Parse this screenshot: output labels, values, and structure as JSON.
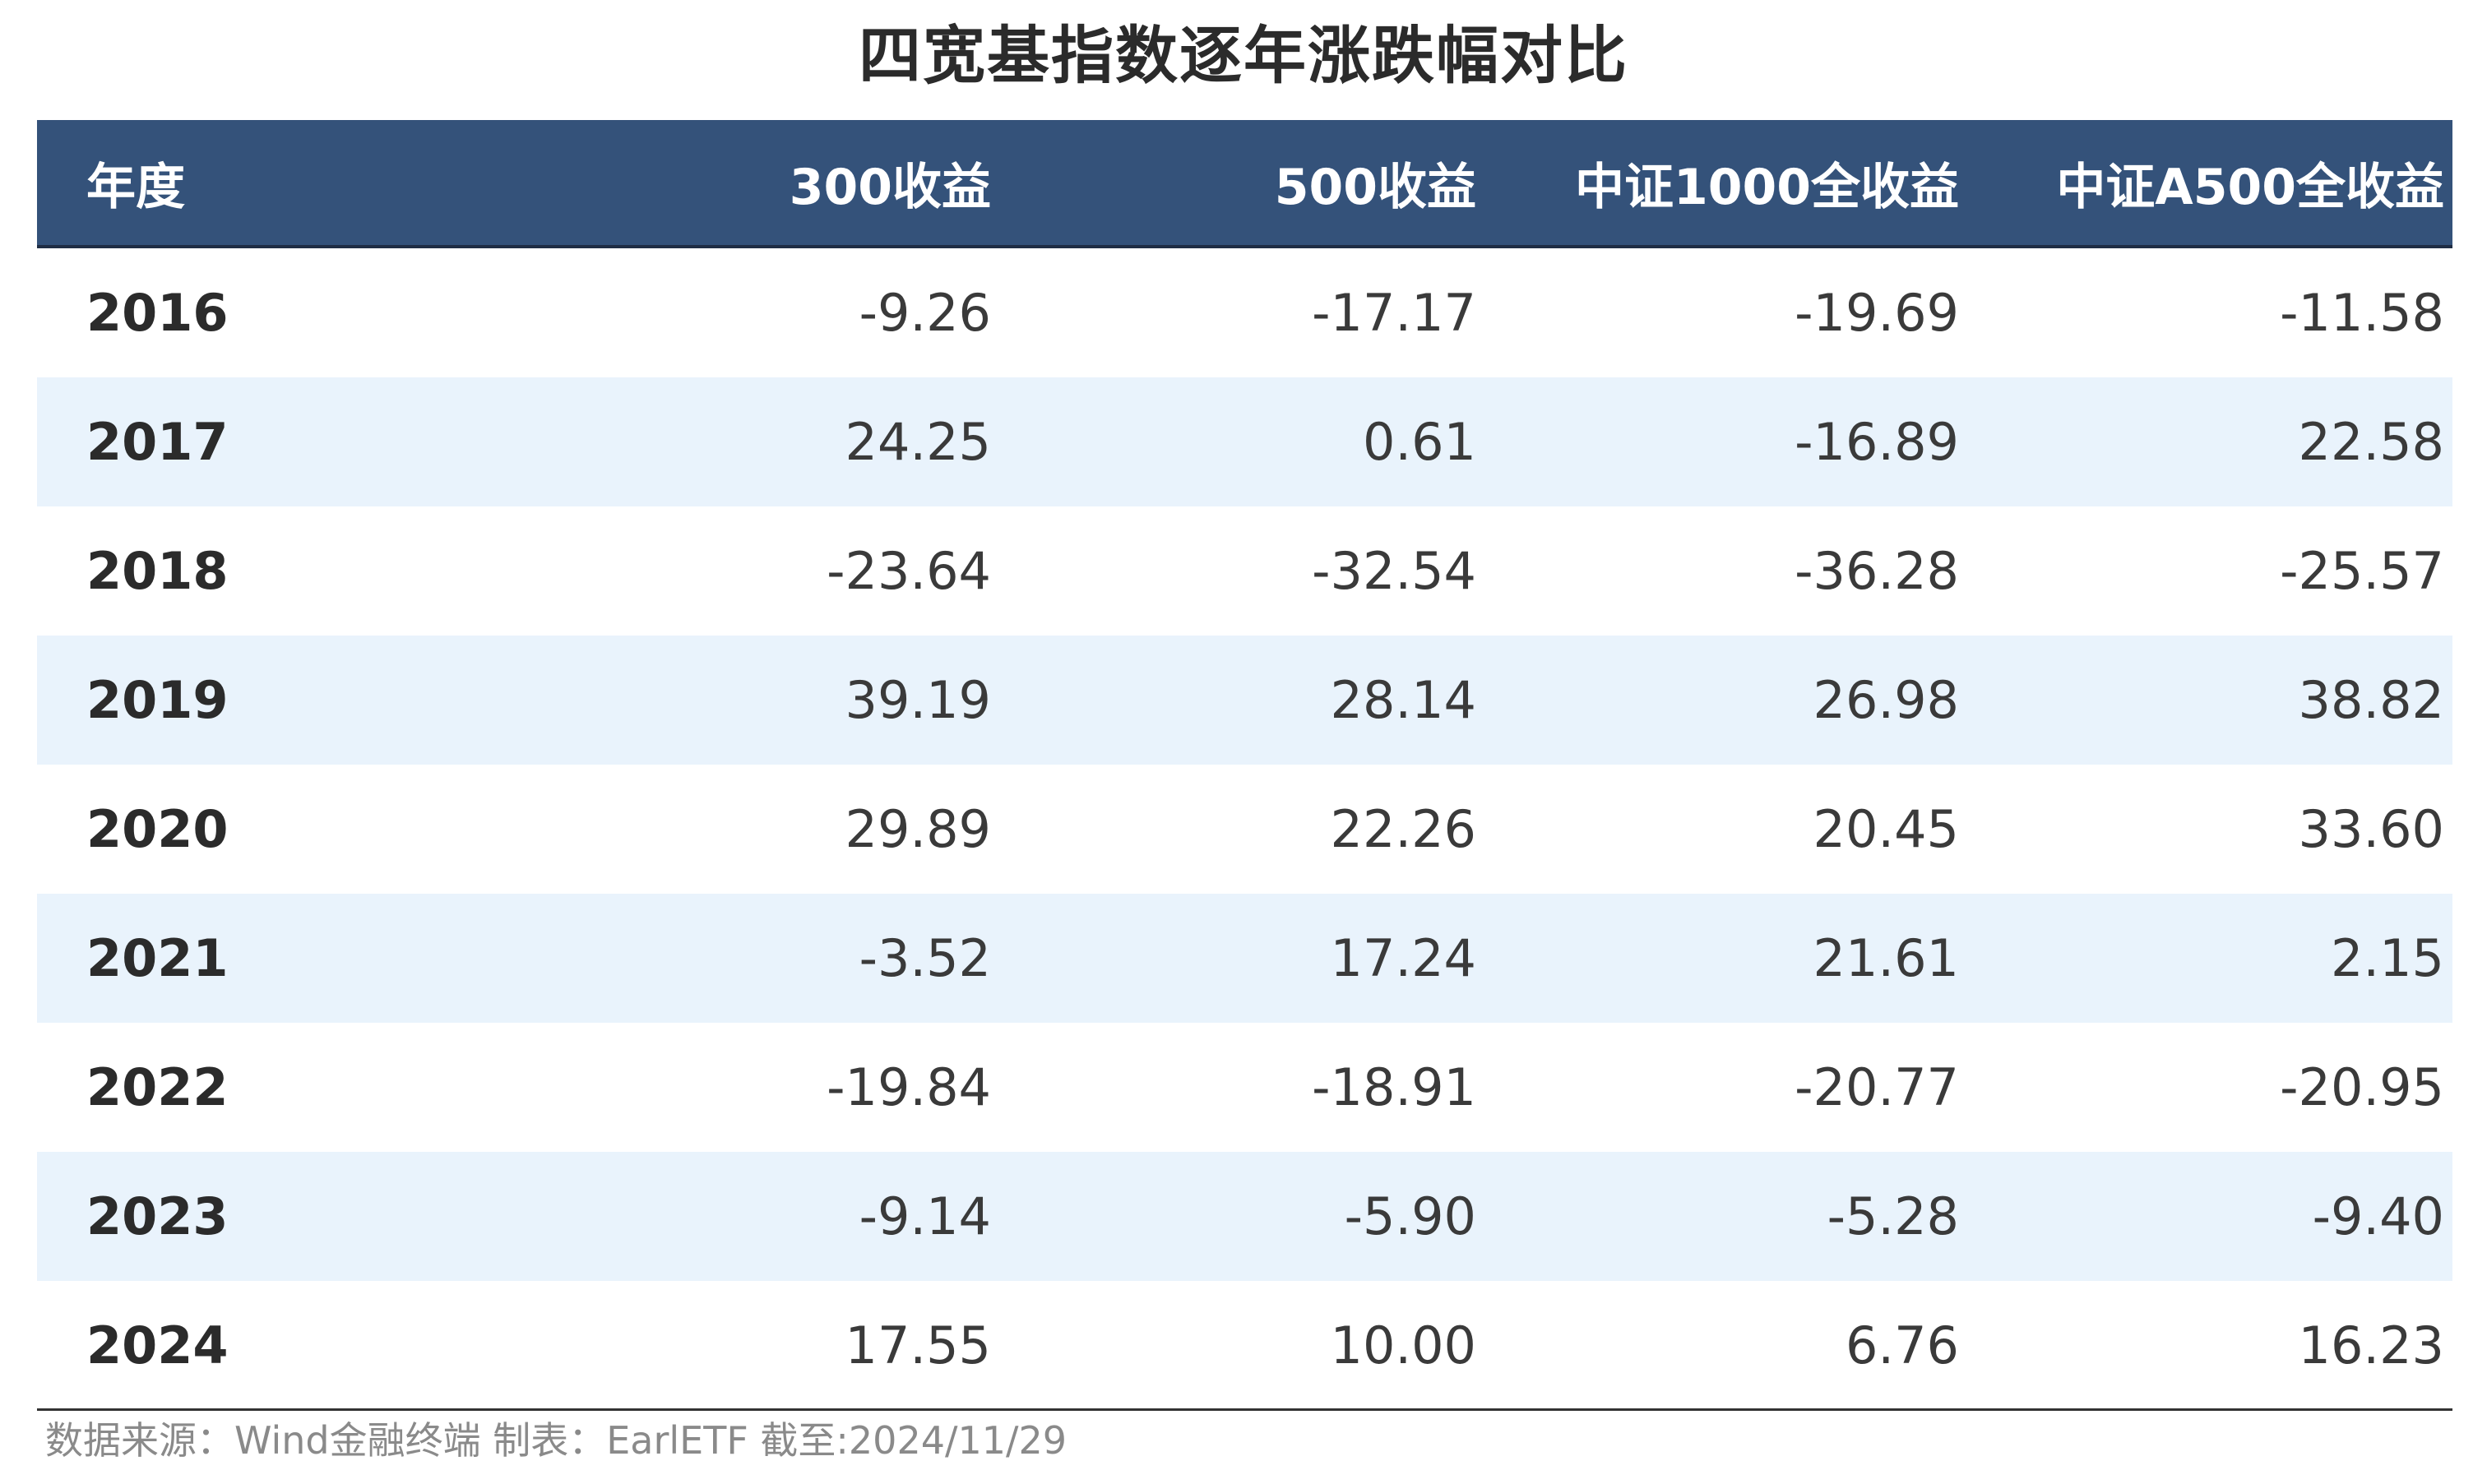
{
  "colors": {
    "header_bg": "#34527a",
    "row_alt_bg": "#e9f3fc",
    "row_bg": "#ffffff",
    "header_text": "#ffffff"
  },
  "chart_data": {
    "type": "table",
    "title": "四宽基指数逐年涨跌幅对比",
    "columns": [
      "年度",
      "300收益",
      "500收益",
      "中证1000全收益",
      "中证A500全收益"
    ],
    "rows": [
      [
        "2016",
        "-9.26",
        "-17.17",
        "-19.69",
        "-11.58"
      ],
      [
        "2017",
        "24.25",
        "0.61",
        "-16.89",
        "22.58"
      ],
      [
        "2018",
        "-23.64",
        "-32.54",
        "-36.28",
        "-25.57"
      ],
      [
        "2019",
        "39.19",
        "28.14",
        "26.98",
        "38.82"
      ],
      [
        "2020",
        "29.89",
        "22.26",
        "20.45",
        "33.60"
      ],
      [
        "2021",
        "-3.52",
        "17.24",
        "21.61",
        "2.15"
      ],
      [
        "2022",
        "-19.84",
        "-18.91",
        "-20.77",
        "-20.95"
      ],
      [
        "2023",
        "-9.14",
        "-5.90",
        "-5.28",
        "-9.40"
      ],
      [
        "2024",
        "17.55",
        "10.00",
        "6.76",
        "16.23"
      ]
    ],
    "source_note": "数据来源：Wind金融终端 制表：EarlETF 截至:2024/11/29"
  }
}
